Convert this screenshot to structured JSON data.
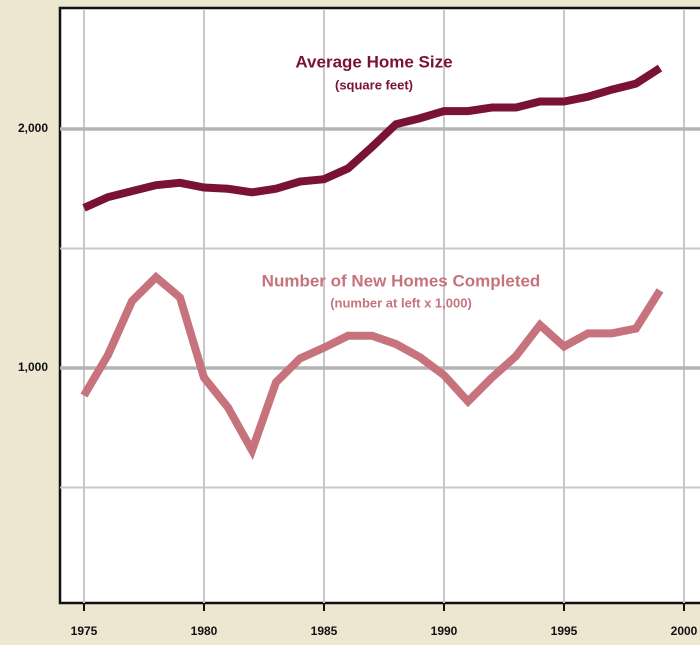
{
  "chart_data": {
    "type": "line",
    "x": [
      1975,
      1976,
      1977,
      1978,
      1979,
      1980,
      1981,
      1982,
      1983,
      1984,
      1985,
      1986,
      1987,
      1988,
      1989,
      1990,
      1991,
      1992,
      1993,
      1994,
      1995,
      1996,
      1997,
      1998,
      1999
    ],
    "series": [
      {
        "name": "Average Home Size",
        "note": "(square feet)",
        "color": "#7a1233",
        "values": [
          1670,
          1715,
          1740,
          1765,
          1775,
          1755,
          1750,
          1735,
          1750,
          1780,
          1790,
          1835,
          1925,
          2020,
          2045,
          2075,
          2075,
          2090,
          2090,
          2115,
          2115,
          2135,
          2165,
          2190,
          2255
        ]
      },
      {
        "name": "Number of New Homes Completed",
        "note": "(number at left x 1,000)",
        "color": "#c6737e",
        "values": [
          885,
          1055,
          1280,
          1380,
          1295,
          960,
          835,
          655,
          940,
          1040,
          1085,
          1135,
          1135,
          1100,
          1045,
          970,
          860,
          960,
          1050,
          1180,
          1090,
          1145,
          1145,
          1165,
          1325
        ]
      }
    ],
    "xlim": [
      1974,
      2001
    ],
    "xticks": [
      1975,
      1980,
      1985,
      1990,
      1995,
      2000
    ],
    "ylim": [
      0,
      2500
    ],
    "yticks": [
      {
        "value": 1000,
        "label": "1,000"
      },
      {
        "value": 2000,
        "label": "2,000"
      }
    ],
    "yticks_minor": [
      500,
      1500
    ],
    "grid": true
  }
}
